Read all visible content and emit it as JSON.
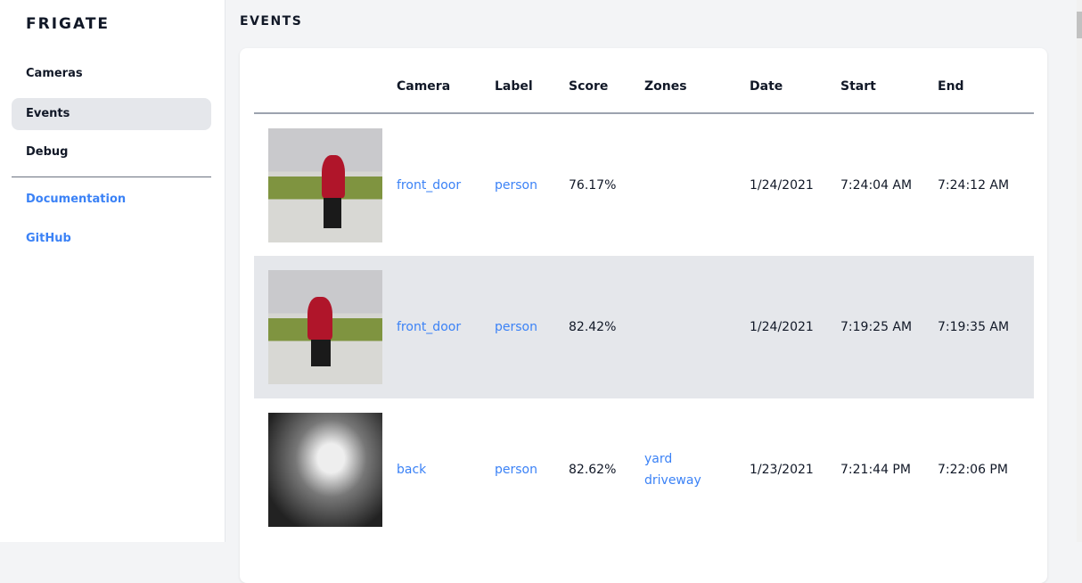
{
  "sidebar": {
    "brand": "FRIGATE",
    "items": [
      {
        "label": "Cameras"
      },
      {
        "label": "Events",
        "active": true
      },
      {
        "label": "Debug"
      }
    ],
    "links": [
      {
        "label": "Documentation"
      },
      {
        "label": "GitHub"
      }
    ]
  },
  "page": {
    "title": "EVENTS"
  },
  "table": {
    "columns": [
      "",
      "Camera",
      "Label",
      "Score",
      "Zones",
      "Date",
      "Start",
      "End"
    ],
    "rows": [
      {
        "camera": "front_door",
        "label": "person",
        "score": "76.17%",
        "zones": [],
        "date": "1/24/2021",
        "start": "7:24:04 AM",
        "end": "7:24:12 AM"
      },
      {
        "camera": "front_door",
        "label": "person",
        "score": "82.42%",
        "zones": [],
        "date": "1/24/2021",
        "start": "7:19:25 AM",
        "end": "7:19:35 AM"
      },
      {
        "camera": "back",
        "label": "person",
        "score": "82.62%",
        "zones": [
          "yard",
          "driveway"
        ],
        "date": "1/23/2021",
        "start": "7:21:44 PM",
        "end": "7:22:06 PM"
      }
    ]
  },
  "colors": {
    "accent": "#3b82f6",
    "active_bg": "#e5e7eb"
  }
}
